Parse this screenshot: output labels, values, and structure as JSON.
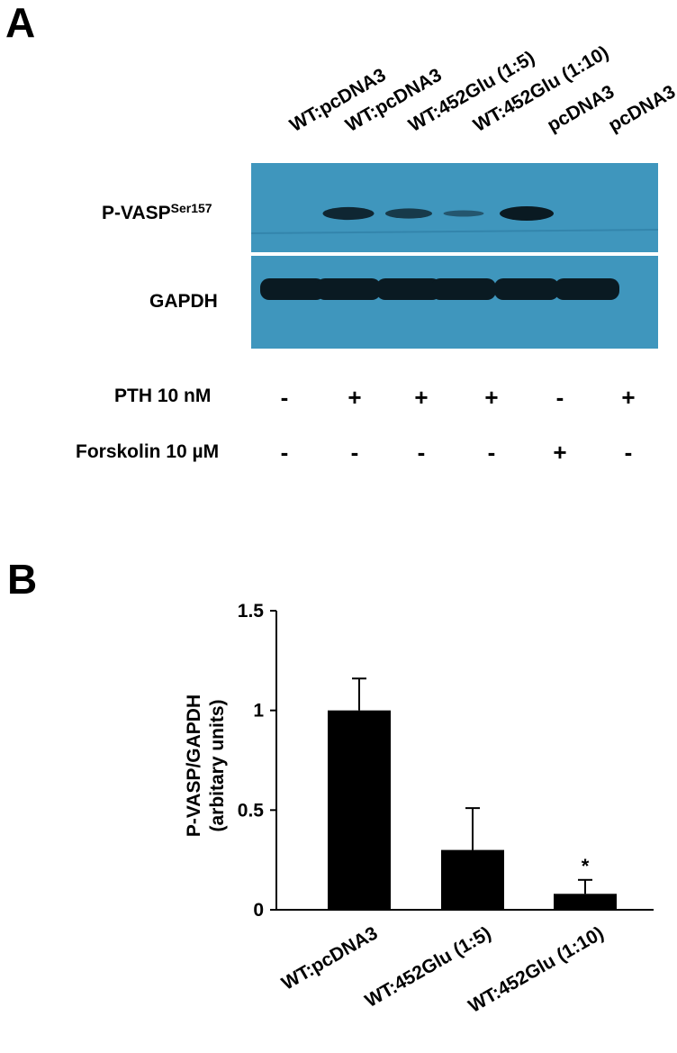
{
  "panel_a": {
    "letter": "A",
    "lanes": [
      "WT:pcDNA3",
      "WT:pcDNA3",
      "WT:452Glu (1:5)",
      "WT:452Glu (1:10)",
      "pcDNA3",
      "pcDNA3"
    ],
    "blot_rows": [
      {
        "main": "P-VASP",
        "sup": "Ser157"
      },
      {
        "main": "GAPDH",
        "sup": ""
      }
    ],
    "pvasp_band_intensity": [
      0,
      0.85,
      0.6,
      0.25,
      1.0,
      0
    ],
    "gapdh_band_intensity": [
      1,
      1,
      1,
      1,
      1,
      1
    ],
    "treatments": [
      {
        "label": "PTH 10 nM",
        "signs": [
          "-",
          "+",
          "+",
          "+",
          "-",
          "+"
        ]
      },
      {
        "label": "Forskolin 10 µM",
        "signs": [
          "-",
          "-",
          "-",
          "-",
          "+",
          "-"
        ]
      }
    ],
    "colors": {
      "membrane": "#3f96bd",
      "band": "#0a1a22"
    }
  },
  "panel_b": {
    "letter": "B",
    "chart_data": {
      "type": "bar",
      "categories": [
        "WT:pcDNA3",
        "WT:452Glu (1:5)",
        "WT:452Glu (1:10)"
      ],
      "values": [
        1.0,
        0.3,
        0.08
      ],
      "errors": [
        0.16,
        0.21,
        0.07
      ],
      "significance": [
        "",
        "",
        "*"
      ],
      "ylabel_line1": "P-VASP/GAPDH",
      "ylabel_line2": "(arbitary units)",
      "yticks": [
        "0",
        "0.5",
        "1",
        "1.5"
      ],
      "ytick_values": [
        0,
        0.5,
        1,
        1.5
      ],
      "ylim": [
        0,
        1.5
      ],
      "bar_color": "#000000"
    }
  }
}
